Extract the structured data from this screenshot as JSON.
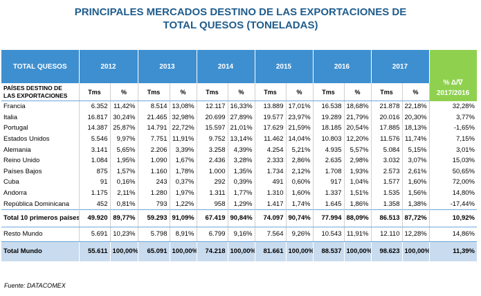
{
  "title_line1": "PRINCIPALES MERCADOS DESTINO DE LAS EXPORTACIONES DE",
  "title_line2": "TOTAL QUESOS (TONELADAS)",
  "header": {
    "corner": "TOTAL QUESOS",
    "years": [
      "2012",
      "2013",
      "2014",
      "2015",
      "2016",
      "2017"
    ],
    "variation_line1": "% Δ/∇",
    "variation_line2": "2017/2016",
    "country_col": "PAÍSES DESTINO DE LAS EXPORTACIONES",
    "tms": "Tms",
    "pct": "%"
  },
  "rows": [
    {
      "name": "Francia",
      "v": [
        "6.352",
        "11,42%",
        "8.514",
        "13,08%",
        "12.117",
        "16,33%",
        "13.889",
        "17,01%",
        "16.538",
        "18,68%",
        "21.878",
        "22,18%",
        "32,28%"
      ]
    },
    {
      "name": "Italia",
      "v": [
        "16.817",
        "30,24%",
        "21.465",
        "32,98%",
        "20.699",
        "27,89%",
        "19.577",
        "23,97%",
        "19.289",
        "21,79%",
        "20.016",
        "20,30%",
        "3,77%"
      ]
    },
    {
      "name": "Portugal",
      "v": [
        "14.387",
        "25,87%",
        "14.791",
        "22,72%",
        "15.597",
        "21,01%",
        "17.629",
        "21,59%",
        "18.185",
        "20,54%",
        "17.885",
        "18,13%",
        "-1,65%"
      ]
    },
    {
      "name": "Estados Unidos",
      "v": [
        "5.546",
        "9,97%",
        "7.751",
        "11,91%",
        "9.752",
        "13,14%",
        "11.462",
        "14,04%",
        "10.803",
        "12,20%",
        "11.576",
        "11,74%",
        "7,15%"
      ]
    },
    {
      "name": "Alemania",
      "v": [
        "3.141",
        "5,65%",
        "2.206",
        "3,39%",
        "3.258",
        "4,39%",
        "4.254",
        "5,21%",
        "4.935",
        "5,57%",
        "5.084",
        "5,15%",
        "3,01%"
      ]
    },
    {
      "name": "Reino Unido",
      "v": [
        "1.084",
        "1,95%",
        "1.090",
        "1,67%",
        "2.436",
        "3,28%",
        "2.333",
        "2,86%",
        "2.635",
        "2,98%",
        "3.032",
        "3,07%",
        "15,03%"
      ]
    },
    {
      "name": "Países Bajos",
      "v": [
        "875",
        "1,57%",
        "1.160",
        "1,78%",
        "1.000",
        "1,35%",
        "1.734",
        "2,12%",
        "1.708",
        "1,93%",
        "2.573",
        "2,61%",
        "50,65%"
      ]
    },
    {
      "name": "Cuba",
      "v": [
        "91",
        "0,16%",
        "243",
        "0,37%",
        "292",
        "0,39%",
        "491",
        "0,60%",
        "917",
        "1,04%",
        "1.577",
        "1,60%",
        "72,00%"
      ]
    },
    {
      "name": "Andorra",
      "v": [
        "1.175",
        "2,11%",
        "1.280",
        "1,97%",
        "1.311",
        "1,77%",
        "1.310",
        "1,60%",
        "1.337",
        "1,51%",
        "1.535",
        "1,56%",
        "14,80%"
      ]
    },
    {
      "name": "República Dominicana",
      "v": [
        "452",
        "0,81%",
        "793",
        "1,22%",
        "958",
        "1,29%",
        "1.417",
        "1,74%",
        "1.645",
        "1,86%",
        "1.358",
        "1,38%",
        "-17,44%"
      ]
    }
  ],
  "total10": {
    "name": "Total 10 primeros países",
    "v": [
      "49.920",
      "89,77%",
      "59.293",
      "91,09%",
      "67.419",
      "90,84%",
      "74.097",
      "90,74%",
      "77.994",
      "88,09%",
      "86.513",
      "87,72%",
      "10,92%"
    ]
  },
  "resto": {
    "name": "Resto Mundo",
    "v": [
      "5.691",
      "10,23%",
      "5.798",
      "8,91%",
      "6.799",
      "9,16%",
      "7.564",
      "9,26%",
      "10.543",
      "11,91%",
      "12.110",
      "12,28%",
      "14,86%"
    ]
  },
  "mundo": {
    "name": "Total Mundo",
    "v": [
      "55.611",
      "100,00%",
      "65.091",
      "100,00%",
      "74.218",
      "100,00%",
      "81.661",
      "100,00%",
      "88.537",
      "100,00%",
      "98.623",
      "100,00%",
      "11,39%"
    ]
  },
  "source": "Fuente: DATACOMEX"
}
